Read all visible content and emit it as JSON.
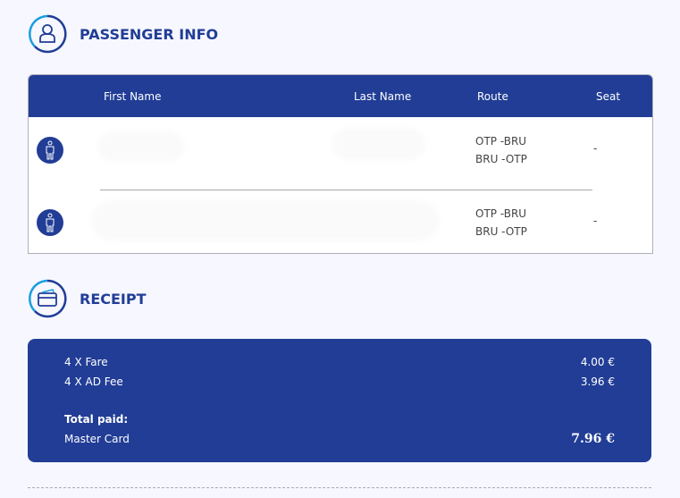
{
  "passenger_section": {
    "title": "PASSENGER INFO",
    "icon": "user-icon"
  },
  "table": {
    "headers": {
      "first_name": "First Name",
      "last_name": "Last Name",
      "route": "Route",
      "seat": "Seat"
    },
    "rows": [
      {
        "routes": [
          "OTP -BRU",
          "BRU -OTP"
        ],
        "seat": "-"
      },
      {
        "routes": [
          "OTP -BRU",
          "BRU -OTP"
        ],
        "seat": "-"
      }
    ]
  },
  "receipt_section": {
    "title": "RECEIPT",
    "icon": "credit-card-icon"
  },
  "receipt": {
    "items": [
      {
        "label": "4 X Fare",
        "amount": "4.00 €"
      },
      {
        "label": "4 X AD Fee",
        "amount": "3.96 €"
      }
    ],
    "total_label": "Total paid:",
    "payment_method": "Master Card",
    "total": "7.96 €"
  },
  "colors": {
    "primary": "#213d96",
    "accent": "#1a9ee0",
    "background": "#f6f7ff"
  }
}
